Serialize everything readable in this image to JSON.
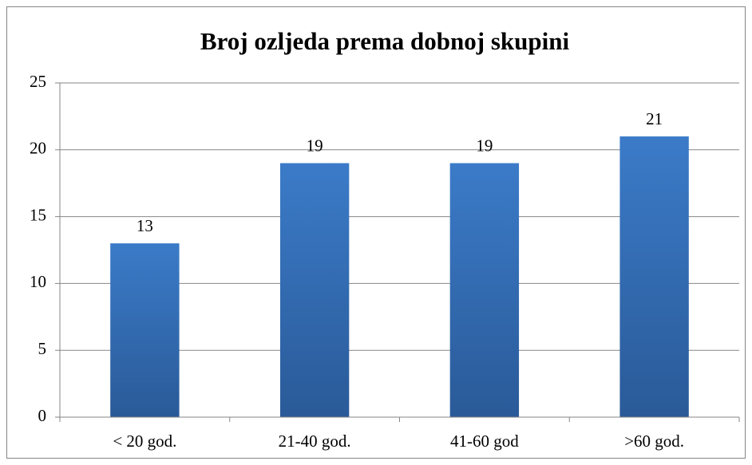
{
  "chart_data": {
    "type": "bar",
    "title": "Broj ozljeda prema dobnoj skupini",
    "categories": [
      "< 20 god.",
      "21-40 god.",
      "41-60 god",
      ">60 god."
    ],
    "values": [
      13,
      19,
      19,
      21
    ],
    "color": "#3b7bc8",
    "ylim": [
      0,
      25
    ],
    "yticks": [
      0,
      5,
      10,
      15,
      20,
      25
    ],
    "grid": true,
    "data_labels": true
  }
}
